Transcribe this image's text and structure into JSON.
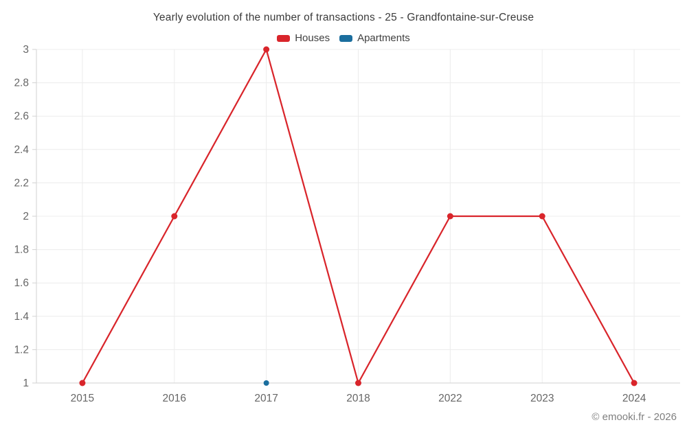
{
  "chart": {
    "title": "Yearly evolution of the number of transactions - 25 - Grandfontaine-sur-Creuse",
    "legend": [
      {
        "label": "Houses",
        "color": "#d9252b"
      },
      {
        "label": "Apartments",
        "color": "#1b6e9e"
      }
    ],
    "copyright": "© emooki.fr - 2026"
  },
  "chart_data": {
    "type": "line",
    "title": "Yearly evolution of the number of transactions - 25 - Grandfontaine-sur-Creuse",
    "categories": [
      "2015",
      "2016",
      "2017",
      "2018",
      "2022",
      "2023",
      "2024"
    ],
    "series": [
      {
        "name": "Houses",
        "color": "#d9252b",
        "marker_radius": 4.5,
        "values": [
          1,
          2,
          3,
          1,
          2,
          2,
          1
        ]
      },
      {
        "name": "Apartments",
        "color": "#1b6e9e",
        "marker_radius": 4,
        "values": [
          null,
          null,
          1,
          null,
          null,
          null,
          null
        ]
      }
    ],
    "xlabel": "",
    "ylabel": "",
    "ylim": [
      1,
      3
    ],
    "yticks": [
      "1",
      "1.2",
      "1.4",
      "1.6",
      "1.8",
      "2",
      "2.2",
      "2.4",
      "2.6",
      "2.8",
      "3"
    ],
    "grid": true,
    "legend_position": "top",
    "colors": {
      "grid": "#ececec",
      "axis": "#d2d2d2",
      "tick_label": "#666666",
      "background": "#ffffff"
    }
  }
}
